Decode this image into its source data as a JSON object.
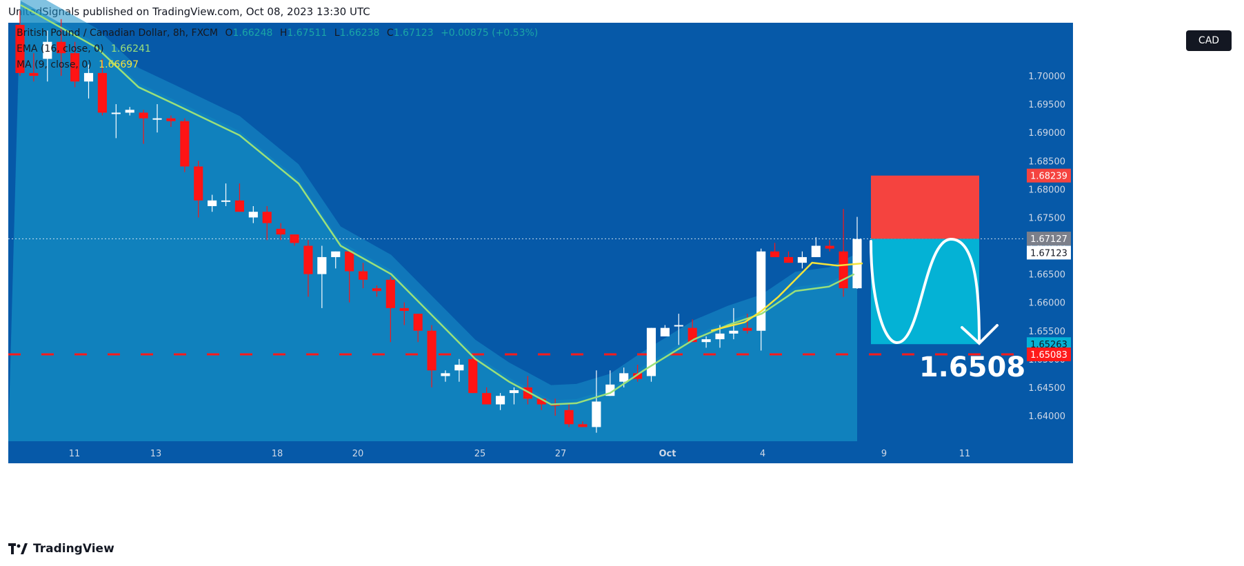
{
  "header": {
    "published": "UnitedSignals published on TradingView.com, Oct 08, 2023 13:30 UTC"
  },
  "footer": {
    "brand": "TradingView"
  },
  "currency_badge": "CAD",
  "legend": {
    "symbol": "British Pound / Canadian Dollar, 8h, FXCM",
    "o_label": "O",
    "o": "1.66248",
    "h_label": "H",
    "h": "1.67511",
    "l_label": "L",
    "l": "1.66238",
    "c_label": "C",
    "c": "1.67123",
    "change": "+0.00875 (+0.53%)",
    "ema_label": "EMA (16, close, 0)",
    "ema_value": "1.66241",
    "ma_label": "MA (9, close, 0)",
    "ma_value": "1.66697"
  },
  "colors": {
    "bg": "#0659a8",
    "band": "#1a90c8",
    "up": "#ffffff",
    "down": "#ff1414",
    "ema": "#9be07a",
    "ma": "#f5e33b",
    "stop": "#f5433f",
    "target": "#04b2d5",
    "dash": "#ff1a1a"
  },
  "chart_data": {
    "type": "candlestick",
    "symbol": "British Pound / Canadian Dollar, 8h, FXCM",
    "y_ticks": [
      "1.70000",
      "1.69500",
      "1.69000",
      "1.68500",
      "1.68000",
      "1.67500",
      "1.67000",
      "1.66500",
      "1.66000",
      "1.65500",
      "1.65000",
      "1.64500",
      "1.64000"
    ],
    "x_ticks": [
      "11",
      "13",
      "18",
      "20",
      "25",
      "27",
      "Oct",
      "4",
      "9",
      "11"
    ],
    "price_labels": {
      "stop": "1.68239",
      "last": "1.67127",
      "close": "1.67123",
      "target": "1.65263",
      "level": "1.65083"
    },
    "annotation": "1.6508",
    "candles": [
      [
        1.709,
        1.7115,
        1.7,
        1.7005
      ],
      [
        1.7005,
        1.704,
        1.699,
        1.7
      ],
      [
        1.703,
        1.708,
        1.699,
        1.706
      ],
      [
        1.706,
        1.71,
        1.7,
        1.704
      ],
      [
        1.704,
        1.706,
        1.698,
        1.699
      ],
      [
        1.699,
        1.702,
        1.696,
        1.7005
      ],
      [
        1.7005,
        1.703,
        1.693,
        1.6935
      ],
      [
        1.6935,
        1.695,
        1.689,
        1.6935
      ],
      [
        1.6935,
        1.6945,
        1.693,
        1.694
      ],
      [
        1.6935,
        1.694,
        1.688,
        1.6925
      ],
      [
        1.6925,
        1.695,
        1.69,
        1.6925
      ],
      [
        1.6925,
        1.693,
        1.691,
        1.692
      ],
      [
        1.692,
        1.6925,
        1.683,
        1.684
      ],
      [
        1.684,
        1.685,
        1.675,
        1.678
      ],
      [
        1.677,
        1.679,
        1.676,
        1.678
      ],
      [
        1.678,
        1.681,
        1.677,
        1.678
      ],
      [
        1.678,
        1.681,
        1.676,
        1.676
      ],
      [
        1.675,
        1.677,
        1.674,
        1.676
      ],
      [
        1.676,
        1.677,
        1.671,
        1.674
      ],
      [
        1.673,
        1.674,
        1.671,
        1.672
      ],
      [
        1.672,
        1.672,
        1.67,
        1.6705
      ],
      [
        1.67,
        1.671,
        1.661,
        1.665
      ],
      [
        1.665,
        1.67,
        1.659,
        1.668
      ],
      [
        1.668,
        1.669,
        1.666,
        1.669
      ],
      [
        1.669,
        1.669,
        1.66,
        1.6655
      ],
      [
        1.6655,
        1.667,
        1.6625,
        1.664
      ],
      [
        1.6625,
        1.663,
        1.661,
        1.662
      ],
      [
        1.664,
        1.6645,
        1.653,
        1.659
      ],
      [
        1.659,
        1.66,
        1.656,
        1.6585
      ],
      [
        1.658,
        1.658,
        1.653,
        1.655
      ],
      [
        1.655,
        1.656,
        1.645,
        1.648
      ],
      [
        1.647,
        1.648,
        1.646,
        1.6475
      ],
      [
        1.648,
        1.65,
        1.646,
        1.649
      ],
      [
        1.65,
        1.6505,
        1.644,
        1.644
      ],
      [
        1.644,
        1.645,
        1.642,
        1.642
      ],
      [
        1.642,
        1.644,
        1.641,
        1.6435
      ],
      [
        1.644,
        1.645,
        1.642,
        1.6445
      ],
      [
        1.645,
        1.647,
        1.642,
        1.643
      ],
      [
        1.643,
        1.643,
        1.641,
        1.642
      ],
      [
        1.642,
        1.643,
        1.64,
        1.6418
      ],
      [
        1.641,
        1.642,
        1.638,
        1.6385
      ],
      [
        1.6385,
        1.639,
        1.638,
        1.638
      ],
      [
        1.638,
        1.648,
        1.637,
        1.6425
      ],
      [
        1.6435,
        1.648,
        1.6435,
        1.6455
      ],
      [
        1.646,
        1.6485,
        1.645,
        1.6475
      ],
      [
        1.6475,
        1.649,
        1.646,
        1.6465
      ],
      [
        1.647,
        1.6555,
        1.646,
        1.6555
      ],
      [
        1.654,
        1.656,
        1.654,
        1.6555
      ],
      [
        1.656,
        1.658,
        1.6525,
        1.656
      ],
      [
        1.6555,
        1.657,
        1.653,
        1.653
      ],
      [
        1.653,
        1.654,
        1.652,
        1.6535
      ],
      [
        1.6535,
        1.656,
        1.652,
        1.6545
      ],
      [
        1.6545,
        1.659,
        1.6535,
        1.655
      ],
      [
        1.6555,
        1.658,
        1.6545,
        1.655
      ],
      [
        1.655,
        1.6695,
        1.6515,
        1.669
      ],
      [
        1.669,
        1.6705,
        1.668,
        1.668
      ],
      [
        1.668,
        1.669,
        1.667,
        1.667
      ],
      [
        1.667,
        1.669,
        1.666,
        1.668
      ],
      [
        1.668,
        1.6715,
        1.668,
        1.67
      ],
      [
        1.67,
        1.671,
        1.669,
        1.6695
      ],
      [
        1.669,
        1.6765,
        1.661,
        1.6625
      ],
      [
        1.6625,
        1.6751,
        1.6624,
        1.6712
      ]
    ],
    "ema_approx": [
      [
        1.7125,
        0
      ],
      [
        1.705,
        0.09
      ],
      [
        1.698,
        0.14
      ],
      [
        1.6945,
        0.19
      ],
      [
        1.6895,
        0.26
      ],
      [
        1.681,
        0.33
      ],
      [
        1.67,
        0.38
      ],
      [
        1.665,
        0.44
      ],
      [
        1.656,
        0.5
      ],
      [
        1.65,
        0.54
      ],
      [
        1.646,
        0.58
      ],
      [
        1.642,
        0.63
      ],
      [
        1.6422,
        0.66
      ],
      [
        1.644,
        0.7
      ],
      [
        1.648,
        0.74
      ],
      [
        1.6535,
        0.8
      ],
      [
        1.656,
        0.84
      ],
      [
        1.658,
        0.88
      ],
      [
        1.662,
        0.92
      ],
      [
        1.6628,
        0.96
      ],
      [
        1.665,
        0.99
      ]
    ],
    "ma_approx": [
      [
        1.655,
        0.82
      ],
      [
        1.6565,
        0.86
      ],
      [
        1.6585,
        0.88
      ],
      [
        1.661,
        0.9
      ],
      [
        1.664,
        0.92
      ],
      [
        1.667,
        0.94
      ],
      [
        1.6665,
        0.97
      ],
      [
        1.6669,
        1.0
      ]
    ],
    "position": {
      "stop": 1.68239,
      "entry": 1.67123,
      "target": 1.65263,
      "level": 1.65083
    }
  }
}
